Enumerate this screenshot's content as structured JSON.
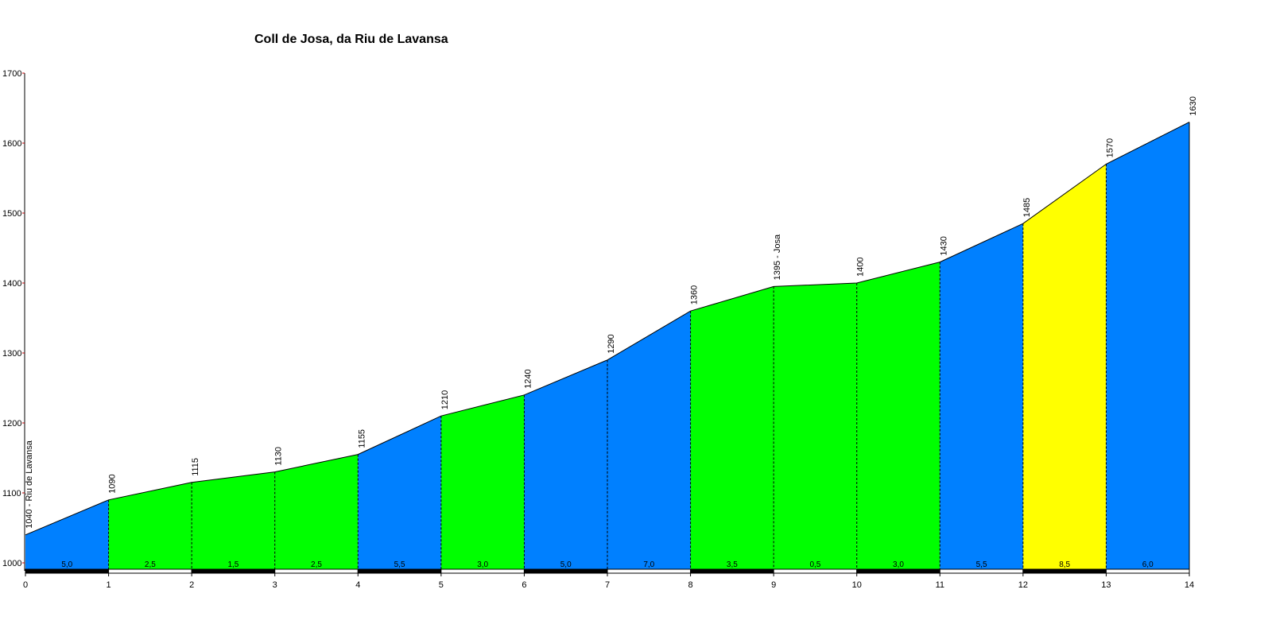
{
  "chart_data": {
    "type": "area",
    "title": "Coll de Josa, da Riu de Lavansa",
    "xlabel": "",
    "ylabel": "",
    "xlim": [
      0,
      14
    ],
    "ylim": [
      1000,
      1700
    ],
    "x_ticks": [
      "0",
      "1",
      "2",
      "3",
      "4",
      "5",
      "6",
      "7",
      "8",
      "9",
      "10",
      "11",
      "12",
      "13",
      "14"
    ],
    "y_ticks": [
      "1000",
      "1100",
      "1200",
      "1300",
      "1400",
      "1500",
      "1600",
      "1700"
    ],
    "x": [
      0,
      1,
      2,
      3,
      4,
      5,
      6,
      7,
      8,
      9,
      10,
      11,
      12,
      13,
      14
    ],
    "elevation": [
      1040,
      1090,
      1115,
      1130,
      1155,
      1210,
      1240,
      1290,
      1360,
      1395,
      1400,
      1430,
      1485,
      1570,
      1630
    ],
    "point_labels": [
      "1040 - Riu de Lavansa",
      "1090",
      "1115",
      "1130",
      "1155",
      "1210",
      "1240",
      "1290",
      "1360",
      "1395 - Josa",
      "1400",
      "1430",
      "1485",
      "1570",
      "1630"
    ],
    "segment_grades": [
      "5,0",
      "2,5",
      "1,5",
      "2,5",
      "5,5",
      "3,0",
      "5,0",
      "7,0",
      "3,5",
      "0,5",
      "3,0",
      "5,5",
      "8,5",
      "6,0"
    ],
    "segment_colors": [
      "#0080ff",
      "#00ff00",
      "#00ff00",
      "#00ff00",
      "#0080ff",
      "#00ff00",
      "#0080ff",
      "#0080ff",
      "#00ff00",
      "#00ff00",
      "#00ff00",
      "#0080ff",
      "#ffff00",
      "#0080ff"
    ],
    "km_bar_colors": [
      "#000000",
      "#ffffff"
    ],
    "grid": false
  }
}
